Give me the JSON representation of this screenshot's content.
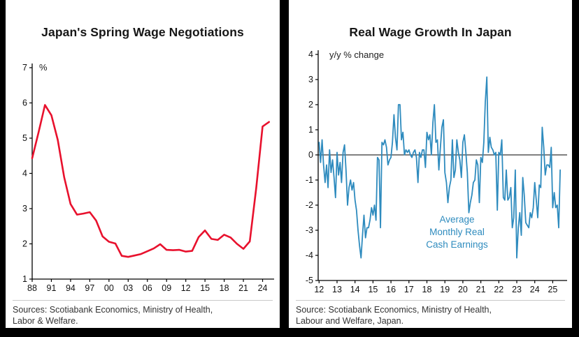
{
  "chart_data": [
    {
      "type": "line",
      "title": "Japan's Spring Wage Negotiations",
      "unit_label": "%",
      "line_color": "#E8112D",
      "x": [
        1988,
        1989,
        1990,
        1991,
        1992,
        1993,
        1994,
        1995,
        1996,
        1997,
        1998,
        1999,
        2000,
        2001,
        2002,
        2003,
        2004,
        2005,
        2006,
        2007,
        2008,
        2009,
        2010,
        2011,
        2012,
        2013,
        2014,
        2015,
        2016,
        2017,
        2018,
        2019,
        2020,
        2021,
        2022,
        2023,
        2024,
        2025
      ],
      "values": [
        4.43,
        5.17,
        5.94,
        5.65,
        4.95,
        3.89,
        3.13,
        2.83,
        2.86,
        2.9,
        2.66,
        2.21,
        2.06,
        2.01,
        1.66,
        1.63,
        1.67,
        1.71,
        1.79,
        1.87,
        1.99,
        1.83,
        1.82,
        1.83,
        1.78,
        1.8,
        2.19,
        2.38,
        2.14,
        2.11,
        2.26,
        2.18,
        2.0,
        1.86,
        2.07,
        3.58,
        5.33,
        5.46
      ],
      "xlim": [
        1988,
        2025.8
      ],
      "ylim": [
        1,
        7
      ],
      "yticks": [
        1,
        2,
        3,
        4,
        5,
        6,
        7
      ],
      "xticks": [
        1988,
        1991,
        1994,
        1997,
        2000,
        2003,
        2006,
        2009,
        2012,
        2015,
        2018,
        2021,
        2024
      ],
      "xtick_labels": [
        "88",
        "91",
        "94",
        "97",
        "00",
        "03",
        "06",
        "09",
        "12",
        "15",
        "18",
        "21",
        "24"
      ],
      "grid": false,
      "legend": "none",
      "source": [
        "Sources: Scotiabank Economics, Ministry of Health,",
        "Labor & Welfare."
      ]
    },
    {
      "type": "line",
      "title": "Real Wage Growth In Japan",
      "unit_label": "y/y % change",
      "annotation": [
        "Average",
        "Monthly Real",
        "Cash Earnings"
      ],
      "line_color": "#2E8BBE",
      "frequency": "monthly",
      "x_start_year": 2012,
      "values": [
        0.5,
        -0.3,
        0.6,
        -0.4,
        -1.1,
        -0.4,
        -1.3,
        0.2,
        -0.7,
        -0.2,
        -0.9,
        -1.7,
        0.1,
        -0.8,
        -0.3,
        -1.1,
        0.1,
        0.4,
        -0.6,
        -2.0,
        -1.3,
        -1.0,
        -1.4,
        -1.1,
        -1.8,
        -2.2,
        -3.0,
        -3.6,
        -4.1,
        -3.2,
        -2.4,
        -3.3,
        -2.9,
        -2.9,
        -2.6,
        -2.1,
        -2.4,
        -2.0,
        -2.6,
        -0.1,
        -0.2,
        -2.9,
        0.5,
        0.4,
        0.6,
        0.3,
        -0.4,
        -0.2,
        -0.1,
        0.5,
        1.6,
        0.7,
        0.2,
        2.0,
        2.0,
        0.6,
        0.9,
        0.0,
        0.2,
        0.1,
        0.2,
        0.0,
        -0.1,
        0.1,
        0.2,
        -0.1,
        -1.1,
        0.1,
        -0.1,
        0.2,
        0.2,
        -0.5,
        0.9,
        0.6,
        0.8,
        0.0,
        1.3,
        2.0,
        0.5,
        0.6,
        -0.6,
        0.3,
        1.1,
        1.4,
        -0.7,
        -1.1,
        -1.9,
        -1.3,
        -1.0,
        0.6,
        -0.9,
        -0.6,
        0.6,
        0.1,
        -0.2,
        -0.9,
        0.5,
        0.8,
        0.1,
        -0.7,
        -2.3,
        -1.9,
        -1.6,
        -1.1,
        -1.0,
        -0.2,
        -0.4,
        -1.9,
        -0.1,
        -0.3,
        0.5,
        2.1,
        3.1,
        0.1,
        0.7,
        0.3,
        0.2,
        0.0,
        0.1,
        -2.2,
        0.1,
        0.0,
        0.6,
        -1.7,
        -1.8,
        -0.6,
        -1.8,
        -1.7,
        -1.3,
        -2.9,
        -2.5,
        -0.6,
        -4.1,
        -2.9,
        -2.3,
        -3.2,
        -0.9,
        -1.6,
        -2.7,
        -2.8,
        -2.9,
        -2.3,
        -2.5,
        -2.1,
        -1.1,
        -1.8,
        -2.5,
        -1.2,
        -1.3,
        1.1,
        0.3,
        -0.8,
        -0.4,
        -0.4,
        -0.5,
        0.3,
        -2.1,
        -1.5,
        -2.1,
        -2.0,
        -2.9,
        -0.6
      ],
      "xlim": [
        2011.95,
        2025.8
      ],
      "ylim": [
        -5,
        4
      ],
      "yticks": [
        4,
        3,
        2,
        1,
        0,
        -1,
        -2,
        -3,
        -4,
        -5
      ],
      "xticks": [
        2012,
        2013,
        2014,
        2015,
        2016,
        2017,
        2018,
        2019,
        2020,
        2021,
        2022,
        2023,
        2024,
        2025
      ],
      "xtick_labels": [
        "12",
        "13",
        "14",
        "15",
        "16",
        "17",
        "18",
        "19",
        "20",
        "21",
        "22",
        "23",
        "24",
        "25"
      ],
      "zero_line": 0,
      "grid": false,
      "legend": "none",
      "source": [
        "Source: Scotiabank Economics, Ministry of Health,",
        "Labour and Welfare, Japan."
      ]
    }
  ]
}
